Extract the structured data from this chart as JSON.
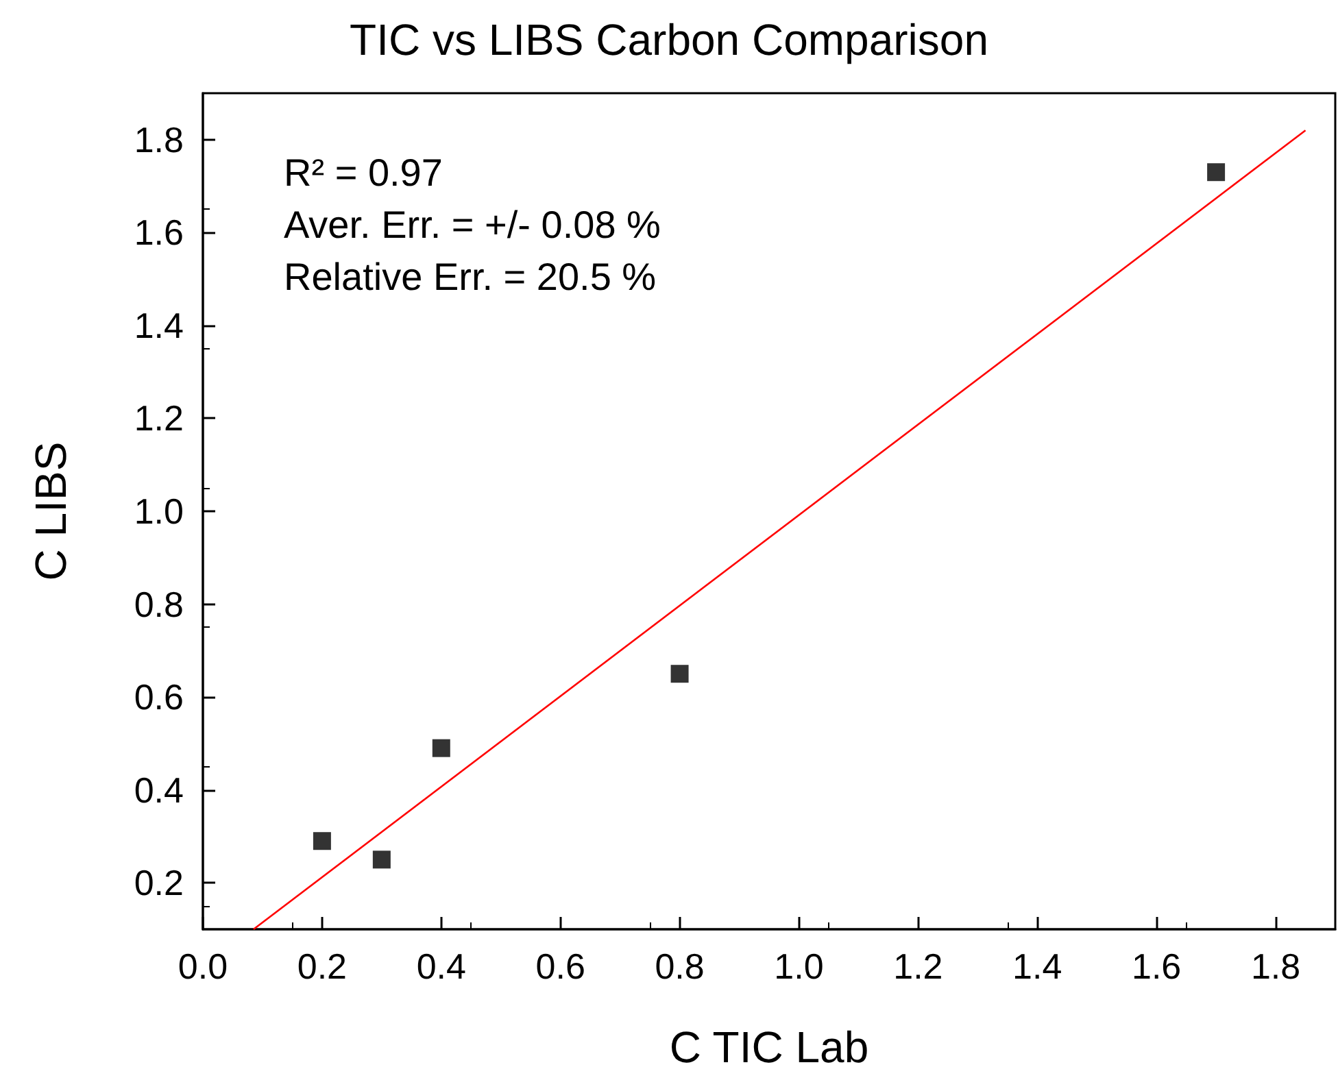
{
  "chart_data": {
    "type": "scatter",
    "title": "TIC vs LIBS Carbon Comparison",
    "xlabel": "C TIC Lab",
    "ylabel": "C LIBS",
    "x": [
      0.2,
      0.3,
      0.4,
      0.8,
      1.7
    ],
    "series": [
      {
        "color": "#000000",
        "marker": "square",
        "values": [
          0.29,
          0.25,
          0.49,
          0.65,
          1.73
        ]
      },
      {
        "type": "line",
        "color": "#ff0000",
        "marker": "none",
        "x": [
          0.085,
          1.85
        ],
        "values": [
          0.1,
          1.82
        ]
      }
    ],
    "xlim": [
      0,
      1.9
    ],
    "ylim": [
      0.1,
      1.9
    ],
    "xticks": [
      {
        "value": 0,
        "label": "0.0"
      },
      0.2,
      0.4,
      0.6,
      0.8,
      {
        "value": 1,
        "label": "1.0"
      },
      1.2,
      1.4,
      1.6,
      1.8
    ],
    "yticks": [
      0.2,
      0.4,
      0.6,
      0.8,
      {
        "value": 1,
        "label": "1.0"
      },
      1.2,
      1.4,
      1.6,
      1.8
    ],
    "annotations": [
      "R² = 0.97",
      "Aver. Err. = +/- 0.08 %",
      "Relative Err. = 20.5 %"
    ],
    "grid": false
  }
}
